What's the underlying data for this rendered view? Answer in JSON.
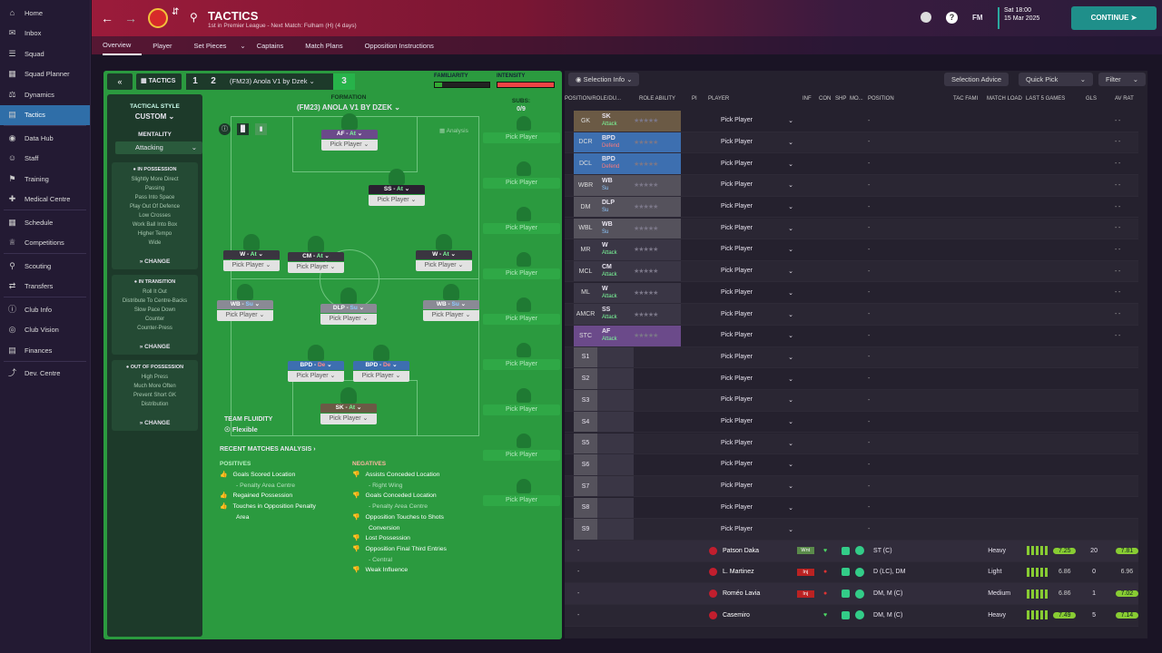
{
  "sidebar": {
    "items": [
      {
        "label": "Home",
        "icon": "home-icon"
      },
      {
        "label": "Inbox",
        "icon": "inbox-icon"
      },
      {
        "label": "Squad",
        "icon": "squad-icon"
      },
      {
        "label": "Squad Planner",
        "icon": "planner-icon"
      },
      {
        "label": "Dynamics",
        "icon": "dynamics-icon"
      },
      {
        "label": "Tactics",
        "icon": "tactics-icon"
      },
      {
        "label": "Data Hub",
        "icon": "datahub-icon"
      },
      {
        "label": "Staff",
        "icon": "staff-icon"
      },
      {
        "label": "Training",
        "icon": "training-icon"
      },
      {
        "label": "Medical Centre",
        "icon": "medical-icon"
      },
      {
        "label": "Schedule",
        "icon": "schedule-icon"
      },
      {
        "label": "Competitions",
        "icon": "trophy-icon"
      },
      {
        "label": "Scouting",
        "icon": "scouting-icon"
      },
      {
        "label": "Transfers",
        "icon": "transfers-icon"
      },
      {
        "label": "Club Info",
        "icon": "clubinfo-icon"
      },
      {
        "label": "Club Vision",
        "icon": "vision-icon"
      },
      {
        "label": "Finances",
        "icon": "finances-icon"
      },
      {
        "label": "Dev. Centre",
        "icon": "devcentre-icon"
      }
    ]
  },
  "header": {
    "title": "TACTICS",
    "subtitle": "1st in Premier League - Next Match: Fulham (H) (4 days)",
    "date_day": "Sat 18:00",
    "date": "15 Mar 2025",
    "continue": "CONTINUE",
    "fm": "FM"
  },
  "tabs": [
    "Overview",
    "Player",
    "Set Pieces",
    "Captains",
    "Match Plans",
    "Opposition Instructions"
  ],
  "tactic": {
    "label": "TACTICS",
    "slot1": "1",
    "slot2": "2",
    "slot3": "3",
    "name": "(FM23) Anola V1 by Dzek",
    "familiarity": "FAMILIARITY",
    "intensity": "INTENSITY",
    "style_label": "TACTICAL STYLE",
    "style": "CUSTOM",
    "mentality_label": "MENTALITY",
    "mentality": "Attacking",
    "in_possession": "IN POSSESSION",
    "in_possession_items": [
      "Slightly More Direct",
      "Passing",
      "Pass Into Space",
      "Play Out Of Defence",
      "Low Crosses",
      "Work Ball Into Box",
      "Higher Tempo",
      "Wide"
    ],
    "in_transition": "IN TRANSITION",
    "in_transition_items": [
      "Roll It Out",
      "Distribute To Centre-Backs",
      "Slow Pace Down",
      "Counter",
      "Counter-Press"
    ],
    "out_possession": "OUT OF POSSESSION",
    "out_possession_items": [
      "High Press",
      "Much More Often",
      "Prevent Short GK",
      "Distribution"
    ],
    "change": "CHANGE",
    "formation_label": "FORMATION",
    "formation": "(FM23) ANOLA V1 BY DZEK",
    "subs_label": "SUBS:",
    "subs": "0/9",
    "analysis": "Analysis",
    "fluidity_label": "TEAM FLUIDITY",
    "fluidity": "Flexible",
    "pick": "Pick Player"
  },
  "positions": [
    {
      "role": "AF",
      "duty": "At",
      "color": "#6b4a8a"
    },
    {
      "role": "SS",
      "duty": "At",
      "color": "#2a2030"
    },
    {
      "role": "W",
      "duty": "At",
      "color": "#3a3540"
    },
    {
      "role": "CM",
      "duty": "At",
      "color": "#3a3540"
    },
    {
      "role": "W",
      "duty": "At",
      "color": "#3a3540"
    },
    {
      "role": "WB",
      "duty": "Su",
      "color": "#8a8a95"
    },
    {
      "role": "DLP",
      "duty": "Su",
      "color": "#8a8a95"
    },
    {
      "role": "WB",
      "duty": "Su",
      "color": "#8a8a95"
    },
    {
      "role": "BPD",
      "duty": "De",
      "color": "#3d6fb0"
    },
    {
      "role": "BPD",
      "duty": "De",
      "color": "#3d6fb0"
    },
    {
      "role": "SK",
      "duty": "At",
      "color": "#6b5a45"
    }
  ],
  "analysis": {
    "title": "RECENT MATCHES ANALYSIS",
    "pos_label": "POSITIVES",
    "neg_label": "NEGATIVES",
    "positives": [
      "Goals Scored Location",
      "- Penalty Area Centre",
      "Regained Possession",
      "Touches in Opposition Penalty",
      "Area"
    ],
    "negatives": [
      "Assists Conceded Location",
      "- Right Wing",
      "Goals Conceded Location",
      "- Penalty Area Centre",
      "Opposition Touches to Shots",
      "Conversion",
      "Lost Possession",
      "Opposition Final Third Entries",
      "- Central",
      "Weak Influence"
    ]
  },
  "right": {
    "selection_info": "Selection Info",
    "selection_advice": "Selection Advice",
    "quick_pick": "Quick Pick",
    "filter": "Filter",
    "headers": [
      "POSITION/ROLE/DU...",
      "ROLE ABILITY",
      "PI",
      "PLAYER",
      "INF",
      "CON",
      "SHP",
      "MO...",
      "POSITION",
      "TAC FAMI",
      "MATCH LOAD",
      "LAST 5 GAMES",
      "GLS",
      "AV RAT"
    ],
    "rows": [
      {
        "pos": "GK",
        "role": "SK",
        "duty": "Attack",
        "c": "#6b5a45"
      },
      {
        "pos": "DCR",
        "role": "BPD",
        "duty": "Defend",
        "c": "#3d6fb0"
      },
      {
        "pos": "DCL",
        "role": "BPD",
        "duty": "Defend",
        "c": "#3d6fb0"
      },
      {
        "pos": "WBR",
        "role": "WB",
        "duty": "Su",
        "c": "#55525c"
      },
      {
        "pos": "DM",
        "role": "DLP",
        "duty": "Su",
        "c": "#55525c"
      },
      {
        "pos": "WBL",
        "role": "WB",
        "duty": "Su",
        "c": "#55525c"
      },
      {
        "pos": "MR",
        "role": "W",
        "duty": "Attack",
        "c": "#3a3645"
      },
      {
        "pos": "MCL",
        "role": "CM",
        "duty": "Attack",
        "c": "#3a3645"
      },
      {
        "pos": "ML",
        "role": "W",
        "duty": "Attack",
        "c": "#3a3645"
      },
      {
        "pos": "AMCR",
        "role": "SS",
        "duty": "Attack",
        "c": "#3a3645"
      },
      {
        "pos": "STC",
        "role": "AF",
        "duty": "Attack",
        "c": "#6b4a8a"
      }
    ],
    "subs": [
      "S1",
      "S2",
      "S3",
      "S4",
      "S5",
      "S6",
      "S7",
      "S8",
      "S9"
    ],
    "players": [
      {
        "name": "Patson Daka",
        "pos": "ST (C)",
        "load": "Heavy",
        "r1": "7.25",
        "g": "20",
        "av": "7.81",
        "tag": "Wnt"
      },
      {
        "name": "L. Martinez",
        "pos": "D (LC), DM",
        "load": "Light",
        "r1": "6.86",
        "g": "0",
        "av": "6.96",
        "tag": "Inj"
      },
      {
        "name": "Roméo Lavia",
        "pos": "DM, M (C)",
        "load": "Medium",
        "r1": "6.86",
        "g": "1",
        "av": "7.02",
        "tag": "Inj"
      },
      {
        "name": "Casemiro",
        "pos": "DM, M (C)",
        "load": "Heavy",
        "r1": "7.49",
        "g": "5",
        "av": "7.14",
        "tag": ""
      }
    ]
  }
}
